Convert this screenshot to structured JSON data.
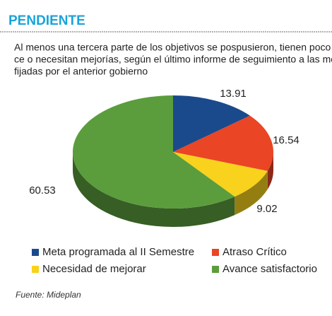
{
  "chart_data": {
    "type": "pie3d",
    "title": "PENDIENTE",
    "subtitle": [
      "Al menos una tercera parte de los objetivos se pospusieron, tienen poco avan-",
      "ce o necesitan mejorías, según el último informe de seguimiento a las metas",
      "fijadas por el anterior gobierno"
    ],
    "categories": [
      "Meta programada al II Semestre",
      "Atraso Crítico",
      "Necesidad de mejorar",
      "Avance satisfactorio"
    ],
    "values": [
      13.91,
      16.54,
      9.02,
      60.53
    ],
    "colors": [
      "#1b4a8c",
      "#ea4524",
      "#f8d21c",
      "#5b9d3c"
    ],
    "source": "Fuente: Mideplan"
  }
}
